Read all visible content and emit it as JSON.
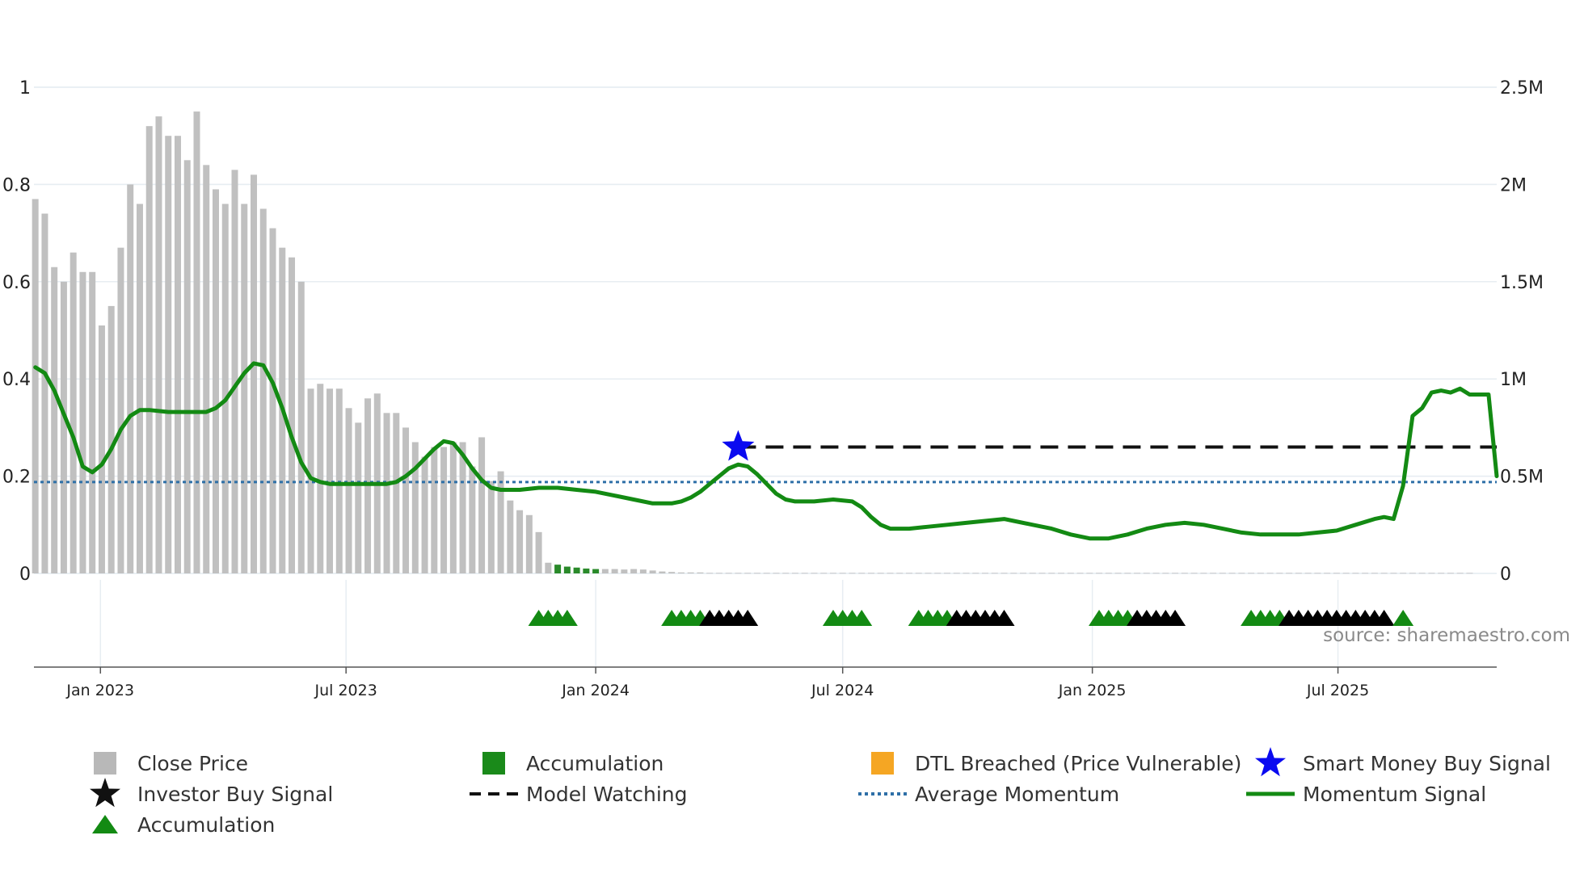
{
  "chart_data": {
    "type": "bar",
    "title": "",
    "source": "source: sharemaestro.com",
    "left_axis": {
      "ticks": [
        "0",
        "0.2",
        "0.4",
        "0.6",
        "0.8",
        "1"
      ],
      "values": [
        0,
        0.2,
        0.4,
        0.6,
        0.8,
        1
      ],
      "ylim": [
        0,
        1
      ]
    },
    "right_axis": {
      "ticks": [
        "0",
        "0.5M",
        "1M",
        "1.5M",
        "2M",
        "2.5M"
      ],
      "values": [
        0,
        500000,
        1000000,
        1500000,
        2000000,
        2500000
      ],
      "ylim": [
        0,
        2500000
      ]
    },
    "x_axis": {
      "range": [
        "2022-11-13",
        "2025-10-26"
      ],
      "ticks": [
        {
          "label": "Jan 2023",
          "date": "2023-01-01"
        },
        {
          "label": "Jul 2023",
          "date": "2023-07-01"
        },
        {
          "label": "Jan 2024",
          "date": "2024-01-01"
        },
        {
          "label": "Jul 2024",
          "date": "2024-07-01"
        },
        {
          "label": "Jan 2025",
          "date": "2025-01-01"
        },
        {
          "label": "Jul 2025",
          "date": "2025-07-01"
        }
      ]
    },
    "bars": {
      "name": "Close Price",
      "color": "#c0c0c0",
      "accumulation_color": "#2a8a2a",
      "start_date": "2022-11-14",
      "interval_days": 7,
      "values": [
        0.77,
        0.74,
        0.63,
        0.6,
        0.66,
        0.62,
        0.62,
        0.51,
        0.55,
        0.67,
        0.8,
        0.76,
        0.92,
        0.94,
        0.9,
        0.9,
        0.85,
        0.95,
        0.84,
        0.79,
        0.76,
        0.83,
        0.76,
        0.82,
        0.75,
        0.71,
        0.67,
        0.65,
        0.6,
        0.38,
        0.39,
        0.38,
        0.38,
        0.34,
        0.31,
        0.36,
        0.37,
        0.33,
        0.33,
        0.3,
        0.27,
        0.24,
        0.26,
        0.26,
        0.27,
        0.27,
        0.22,
        0.28,
        0.19,
        0.21,
        0.15,
        0.13,
        0.12,
        0.085,
        0.022,
        0.018,
        0.014,
        0.012,
        0.01,
        0.009,
        0.009,
        0.009,
        0.008,
        0.009,
        0.008,
        0.006,
        0.004,
        0.003,
        0.002,
        0.002,
        0.002,
        0.001,
        0.001,
        0.001,
        0.001,
        0.001,
        0.001,
        0.001,
        0.001,
        0.001,
        0.001,
        0.001,
        0.001,
        0.001,
        0.001,
        0.001,
        0.001,
        0.001,
        0.001,
        0.001,
        0.001,
        0.001,
        0.001,
        0.001,
        0.001,
        0.001,
        0.001,
        0.001,
        0.001,
        0.001,
        0.001,
        0.001,
        0.001,
        0.001,
        0.001,
        0.001,
        0.001,
        0.001,
        0.001,
        0.001,
        0.001,
        0.001,
        0.001,
        0.001,
        0.001,
        0.001,
        0.001,
        0.001,
        0.001,
        0.001,
        0.001,
        0.001,
        0.001,
        0.001,
        0.001,
        0.001,
        0.001,
        0.001,
        0.001,
        0.001,
        0.001,
        0.001,
        0.001,
        0.001,
        0.001,
        0.001,
        0.001,
        0.001,
        0.001,
        0.001,
        0.001,
        0.001,
        0.001,
        0.001,
        0.001,
        0.001,
        0.001,
        0.001,
        0.001,
        0.001,
        0.001,
        0.001
      ],
      "accumulation_range": [
        55,
        59
      ]
    },
    "momentum": {
      "name": "Momentum Signal",
      "color": "#138a13",
      "axis": "right",
      "points": [
        [
          "2022-11-14",
          1060000
        ],
        [
          "2022-11-21",
          1030000
        ],
        [
          "2022-11-28",
          940000
        ],
        [
          "2022-12-05",
          820000
        ],
        [
          "2022-12-12",
          700000
        ],
        [
          "2022-12-19",
          550000
        ],
        [
          "2022-12-26",
          520000
        ],
        [
          "2023-01-02",
          560000
        ],
        [
          "2023-01-09",
          640000
        ],
        [
          "2023-01-16",
          740000
        ],
        [
          "2023-01-23",
          810000
        ],
        [
          "2023-01-30",
          840000
        ],
        [
          "2023-02-06",
          840000
        ],
        [
          "2023-02-20",
          830000
        ],
        [
          "2023-03-06",
          830000
        ],
        [
          "2023-03-20",
          830000
        ],
        [
          "2023-03-27",
          850000
        ],
        [
          "2023-04-03",
          890000
        ],
        [
          "2023-04-10",
          960000
        ],
        [
          "2023-04-17",
          1030000
        ],
        [
          "2023-04-24",
          1080000
        ],
        [
          "2023-05-01",
          1070000
        ],
        [
          "2023-05-08",
          980000
        ],
        [
          "2023-05-15",
          850000
        ],
        [
          "2023-05-22",
          700000
        ],
        [
          "2023-05-29",
          570000
        ],
        [
          "2023-06-05",
          490000
        ],
        [
          "2023-06-12",
          470000
        ],
        [
          "2023-06-19",
          460000
        ],
        [
          "2023-07-03",
          460000
        ],
        [
          "2023-07-17",
          460000
        ],
        [
          "2023-07-31",
          460000
        ],
        [
          "2023-08-07",
          470000
        ],
        [
          "2023-08-14",
          500000
        ],
        [
          "2023-08-21",
          540000
        ],
        [
          "2023-08-28",
          590000
        ],
        [
          "2023-09-04",
          640000
        ],
        [
          "2023-09-11",
          680000
        ],
        [
          "2023-09-18",
          670000
        ],
        [
          "2023-09-25",
          610000
        ],
        [
          "2023-10-02",
          540000
        ],
        [
          "2023-10-09",
          480000
        ],
        [
          "2023-10-16",
          440000
        ],
        [
          "2023-10-23",
          430000
        ],
        [
          "2023-11-06",
          430000
        ],
        [
          "2023-11-20",
          440000
        ],
        [
          "2023-12-04",
          440000
        ],
        [
          "2023-12-18",
          430000
        ],
        [
          "2024-01-01",
          420000
        ],
        [
          "2024-01-15",
          400000
        ],
        [
          "2024-01-29",
          380000
        ],
        [
          "2024-02-12",
          360000
        ],
        [
          "2024-02-26",
          360000
        ],
        [
          "2024-03-04",
          370000
        ],
        [
          "2024-03-11",
          390000
        ],
        [
          "2024-03-18",
          420000
        ],
        [
          "2024-03-25",
          460000
        ],
        [
          "2024-04-01",
          500000
        ],
        [
          "2024-04-08",
          540000
        ],
        [
          "2024-04-15",
          560000
        ],
        [
          "2024-04-22",
          550000
        ],
        [
          "2024-04-29",
          510000
        ],
        [
          "2024-05-06",
          460000
        ],
        [
          "2024-05-13",
          410000
        ],
        [
          "2024-05-20",
          380000
        ],
        [
          "2024-05-27",
          370000
        ],
        [
          "2024-06-10",
          370000
        ],
        [
          "2024-06-24",
          380000
        ],
        [
          "2024-07-08",
          370000
        ],
        [
          "2024-07-15",
          340000
        ],
        [
          "2024-07-22",
          290000
        ],
        [
          "2024-07-29",
          250000
        ],
        [
          "2024-08-05",
          230000
        ],
        [
          "2024-08-19",
          230000
        ],
        [
          "2024-09-02",
          240000
        ],
        [
          "2024-09-16",
          250000
        ],
        [
          "2024-09-30",
          260000
        ],
        [
          "2024-10-14",
          270000
        ],
        [
          "2024-10-28",
          280000
        ],
        [
          "2024-11-04",
          270000
        ],
        [
          "2024-11-18",
          250000
        ],
        [
          "2024-12-02",
          230000
        ],
        [
          "2024-12-16",
          200000
        ],
        [
          "2024-12-30",
          180000
        ],
        [
          "2025-01-13",
          180000
        ],
        [
          "2025-01-27",
          200000
        ],
        [
          "2025-02-10",
          230000
        ],
        [
          "2025-02-24",
          250000
        ],
        [
          "2025-03-10",
          260000
        ],
        [
          "2025-03-24",
          250000
        ],
        [
          "2025-04-07",
          230000
        ],
        [
          "2025-04-21",
          210000
        ],
        [
          "2025-05-05",
          200000
        ],
        [
          "2025-05-19",
          200000
        ],
        [
          "2025-06-02",
          200000
        ],
        [
          "2025-06-16",
          210000
        ],
        [
          "2025-06-30",
          220000
        ],
        [
          "2025-07-14",
          250000
        ],
        [
          "2025-07-28",
          280000
        ],
        [
          "2025-08-04",
          290000
        ],
        [
          "2025-08-11",
          280000
        ],
        [
          "2025-08-18",
          450000
        ],
        [
          "2025-08-25",
          810000
        ],
        [
          "2025-09-01",
          850000
        ],
        [
          "2025-09-08",
          930000
        ],
        [
          "2025-09-15",
          940000
        ],
        [
          "2025-09-22",
          930000
        ],
        [
          "2025-09-29",
          950000
        ],
        [
          "2025-10-06",
          920000
        ],
        [
          "2025-10-13",
          920000
        ],
        [
          "2025-10-20",
          920000
        ],
        [
          "2025-10-26",
          500000
        ]
      ]
    },
    "average_momentum": {
      "name": "Average Momentum",
      "value": 470000,
      "axis": "right",
      "color": "#2e6fa7"
    },
    "model_watching": {
      "name": "Model Watching",
      "value": 650000,
      "axis": "right",
      "start": "2024-04-15",
      "end": "2025-10-26",
      "color": "#111111"
    },
    "smart_money_buy_signal": {
      "name": "Smart Money Buy Signal",
      "date": "2024-04-15",
      "value": 650000,
      "axis": "right",
      "color": "#0a0af0"
    },
    "signal_markers": [
      {
        "date": "2023-11-20",
        "color": "green"
      },
      {
        "date": "2023-11-27",
        "color": "green"
      },
      {
        "date": "2023-12-04",
        "color": "green"
      },
      {
        "date": "2023-12-11",
        "color": "green"
      },
      {
        "date": "2024-02-26",
        "color": "green"
      },
      {
        "date": "2024-03-04",
        "color": "green"
      },
      {
        "date": "2024-03-11",
        "color": "green"
      },
      {
        "date": "2024-03-18",
        "color": "green"
      },
      {
        "date": "2024-03-25",
        "color": "black"
      },
      {
        "date": "2024-04-01",
        "color": "black"
      },
      {
        "date": "2024-04-08",
        "color": "black"
      },
      {
        "date": "2024-04-15",
        "color": "black"
      },
      {
        "date": "2024-04-22",
        "color": "black"
      },
      {
        "date": "2024-06-24",
        "color": "green"
      },
      {
        "date": "2024-07-01",
        "color": "green"
      },
      {
        "date": "2024-07-08",
        "color": "green"
      },
      {
        "date": "2024-07-15",
        "color": "green"
      },
      {
        "date": "2024-08-26",
        "color": "green"
      },
      {
        "date": "2024-09-02",
        "color": "green"
      },
      {
        "date": "2024-09-09",
        "color": "green"
      },
      {
        "date": "2024-09-16",
        "color": "green"
      },
      {
        "date": "2024-09-23",
        "color": "black"
      },
      {
        "date": "2024-09-30",
        "color": "black"
      },
      {
        "date": "2024-10-07",
        "color": "black"
      },
      {
        "date": "2024-10-14",
        "color": "black"
      },
      {
        "date": "2024-10-21",
        "color": "black"
      },
      {
        "date": "2024-10-28",
        "color": "black"
      },
      {
        "date": "2025-01-06",
        "color": "green"
      },
      {
        "date": "2025-01-13",
        "color": "green"
      },
      {
        "date": "2025-01-20",
        "color": "green"
      },
      {
        "date": "2025-01-27",
        "color": "green"
      },
      {
        "date": "2025-02-03",
        "color": "black"
      },
      {
        "date": "2025-02-10",
        "color": "black"
      },
      {
        "date": "2025-02-17",
        "color": "black"
      },
      {
        "date": "2025-02-24",
        "color": "black"
      },
      {
        "date": "2025-03-03",
        "color": "black"
      },
      {
        "date": "2025-04-28",
        "color": "green"
      },
      {
        "date": "2025-05-05",
        "color": "green"
      },
      {
        "date": "2025-05-12",
        "color": "green"
      },
      {
        "date": "2025-05-19",
        "color": "green"
      },
      {
        "date": "2025-05-26",
        "color": "black"
      },
      {
        "date": "2025-06-02",
        "color": "black"
      },
      {
        "date": "2025-06-09",
        "color": "black"
      },
      {
        "date": "2025-06-16",
        "color": "black"
      },
      {
        "date": "2025-06-23",
        "color": "black"
      },
      {
        "date": "2025-06-30",
        "color": "black"
      },
      {
        "date": "2025-07-07",
        "color": "black"
      },
      {
        "date": "2025-07-14",
        "color": "black"
      },
      {
        "date": "2025-07-21",
        "color": "black"
      },
      {
        "date": "2025-07-28",
        "color": "black"
      },
      {
        "date": "2025-08-04",
        "color": "black"
      },
      {
        "date": "2025-08-18",
        "color": "green"
      }
    ],
    "legend": [
      {
        "label": "Close Price",
        "symbol": "square",
        "color": "#b8b8b8"
      },
      {
        "label": "Accumulation",
        "symbol": "square",
        "color": "#1a8a1a"
      },
      {
        "label": "DTL Breached (Price Vulnerable)",
        "symbol": "square",
        "color": "#f5a623"
      },
      {
        "label": "Smart Money Buy Signal",
        "symbol": "star",
        "color": "#0a0af0"
      },
      {
        "label": "Investor Buy Signal",
        "symbol": "star",
        "color": "#111111"
      },
      {
        "label": "Model Watching",
        "symbol": "dash",
        "color": "#111111"
      },
      {
        "label": "Average Momentum",
        "symbol": "dot",
        "color": "#2e6fa7"
      },
      {
        "label": "Momentum Signal",
        "symbol": "line",
        "color": "#138a13"
      },
      {
        "label": "Accumulation",
        "symbol": "triangle",
        "color": "#138a13"
      }
    ]
  }
}
